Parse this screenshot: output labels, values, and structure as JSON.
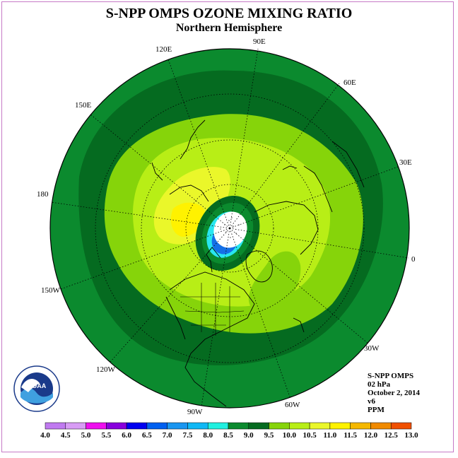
{
  "title": "S-NPP OMPS OZONE MIXING RATIO",
  "subtitle": "Northern Hemisphere",
  "lon_labels": {
    "e90": "90E",
    "e120": "120E",
    "e60": "60E",
    "e150": "150E",
    "e30": "30E",
    "l180": "180",
    "l0": "0",
    "w150": "150W",
    "w30": "30W",
    "w120": "120W",
    "w60": "60W",
    "w90": "90W"
  },
  "logo_text": "NOAA",
  "info": {
    "product": "S-NPP OMPS",
    "level": "02 hPa",
    "date": "October 2, 2014",
    "version": "v6",
    "units": "PPM"
  },
  "colorbar": {
    "labels": [
      "4.0",
      "4.5",
      "5.0",
      "5.5",
      "6.0",
      "6.5",
      "7.0",
      "7.5",
      "8.0",
      "8.5",
      "9.0",
      "9.5",
      "10.0",
      "10.5",
      "11.0",
      "11.5",
      "12.0",
      "12.5",
      "13.0"
    ],
    "colors": [
      "#c07af0",
      "#d89cf5",
      "#ee10ee",
      "#8800dd",
      "#0000f0",
      "#0060f0",
      "#1a96f0",
      "#10b8f5",
      "#20f0e0",
      "#0b8a2e",
      "#056b20",
      "#86d40a",
      "#b8ee16",
      "#eaf72a",
      "#fff200",
      "#f5b800",
      "#f08a00",
      "#f05000",
      "#e80000",
      "#8a5030"
    ]
  }
}
